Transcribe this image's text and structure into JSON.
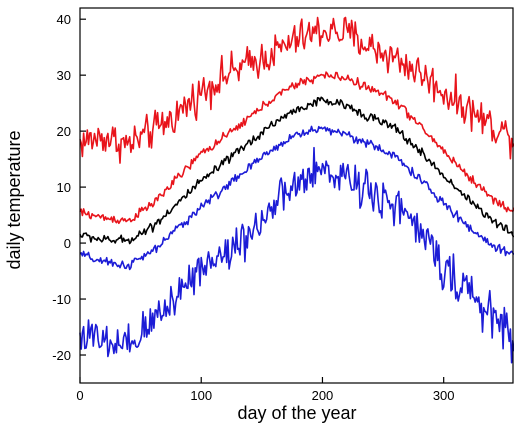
{
  "chart_data": {
    "type": "line",
    "title": "",
    "xlabel": "day of the year",
    "ylabel": "daily temperature",
    "xlim": [
      0,
      358
    ],
    "ylim": [
      -25,
      42
    ],
    "xticks": [
      0,
      100,
      200,
      300
    ],
    "yticks": [
      -20,
      -10,
      0,
      10,
      20,
      30,
      40
    ],
    "grid": false,
    "legend": "none",
    "series": [
      {
        "color": "#e8141b",
        "noise": 1.6,
        "x": [
          0,
          20,
          40,
          60,
          80,
          100,
          120,
          140,
          160,
          180,
          200,
          220,
          240,
          260,
          280,
          300,
          320,
          340,
          358
        ],
        "y": [
          18,
          19,
          17.5,
          20,
          23,
          27,
          30,
          32,
          34,
          36.5,
          38,
          37.5,
          35,
          33,
          30.5,
          27,
          24,
          21,
          19
        ]
      },
      {
        "color": "#e8141b",
        "noise": 0.4,
        "x": [
          0,
          20,
          40,
          60,
          80,
          100,
          120,
          140,
          160,
          180,
          200,
          220,
          240,
          260,
          280,
          300,
          320,
          340,
          358
        ],
        "y": [
          5.5,
          4.5,
          4,
          7,
          11.5,
          16,
          19,
          22.5,
          26,
          28.5,
          30,
          29.5,
          27.5,
          25.5,
          21,
          16.5,
          12,
          8,
          5.5
        ]
      },
      {
        "color": "#000000",
        "noise": 0.4,
        "x": [
          0,
          20,
          40,
          60,
          80,
          100,
          120,
          140,
          160,
          180,
          200,
          220,
          240,
          260,
          280,
          300,
          320,
          340,
          358
        ],
        "y": [
          1.5,
          0.5,
          0.5,
          3,
          7,
          11,
          14.5,
          18,
          21.5,
          24,
          25.5,
          24.5,
          22.5,
          20.5,
          16.5,
          12,
          8,
          4,
          1.5
        ]
      },
      {
        "color": "#1c1cd6",
        "noise": 0.4,
        "x": [
          0,
          20,
          40,
          60,
          80,
          100,
          120,
          140,
          160,
          180,
          200,
          220,
          240,
          260,
          280,
          300,
          320,
          340,
          358
        ],
        "y": [
          -2,
          -3.5,
          -4,
          -1.5,
          2.5,
          6.5,
          10,
          13.5,
          17,
          19.5,
          20.5,
          19.5,
          17.5,
          15.5,
          11.5,
          7,
          3,
          -0.5,
          -2
        ]
      },
      {
        "color": "#1c1cd6",
        "noise": 1.8,
        "x": [
          0,
          20,
          40,
          60,
          80,
          100,
          120,
          140,
          160,
          180,
          200,
          220,
          240,
          260,
          280,
          300,
          320,
          340,
          358
        ],
        "y": [
          -16,
          -18,
          -19,
          -14,
          -9,
          -4,
          -2,
          2,
          6.5,
          10.5,
          13,
          12,
          9.5,
          7,
          2,
          -4,
          -9,
          -13,
          -17
        ]
      }
    ]
  }
}
